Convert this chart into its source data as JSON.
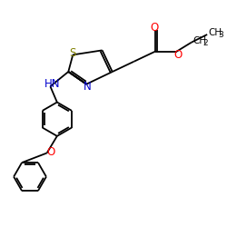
{
  "background_color": "#ffffff",
  "bond_color": "#000000",
  "S_color": "#808000",
  "N_color": "#0000cd",
  "O_color": "#ff0000",
  "lw": 1.3,
  "figsize": [
    2.5,
    2.5
  ],
  "dpi": 100,
  "xlim": [
    0,
    10
  ],
  "ylim": [
    0,
    10
  ]
}
